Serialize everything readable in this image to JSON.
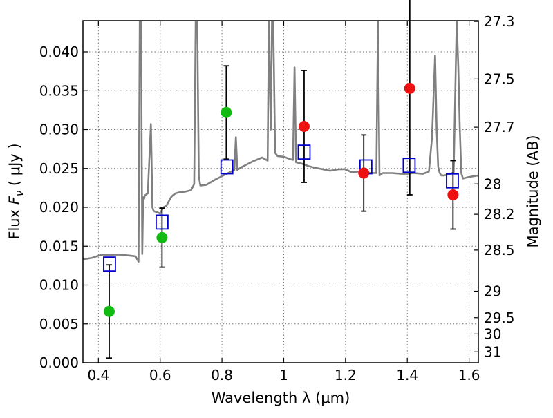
{
  "chart_data": {
    "type": "line",
    "xlabel": "Wavelength  λ (μm)",
    "ylabel": {
      "prefix": "Flux  ",
      "symbol": "F",
      "subscript": "ν",
      "unit": "  ( μJy )"
    },
    "y2label": "Magnitude (AB)",
    "xlim": [
      0.35,
      1.63
    ],
    "ylim": [
      0.0,
      0.044
    ],
    "x_ticks": [
      0.4,
      0.6,
      0.8,
      1.0,
      1.2,
      1.4,
      1.6
    ],
    "x_tick_labels": [
      "0.4",
      "0.6",
      "0.8",
      "1",
      "1.2",
      "1.4",
      "1.6"
    ],
    "y_ticks": [
      0.0,
      0.005,
      0.01,
      0.015,
      0.02,
      0.025,
      0.03,
      0.035,
      0.04
    ],
    "y_tick_labels": [
      "0.000",
      "0.005",
      "0.010",
      "0.015",
      "0.020",
      "0.025",
      "0.030",
      "0.035",
      "0.040"
    ],
    "y2_ticks": [
      {
        "label": "27.3",
        "flux": 0.0439
      },
      {
        "label": "27.5",
        "flux": 0.0365
      },
      {
        "label": "27.7",
        "flux": 0.0303
      },
      {
        "label": "28",
        "flux": 0.023
      },
      {
        "label": "28.2",
        "flux": 0.0191
      },
      {
        "label": "28.5",
        "flux": 0.0145
      },
      {
        "label": "29",
        "flux": 0.0092
      },
      {
        "label": "29.5",
        "flux": 0.0058
      },
      {
        "label": "30",
        "flux": 0.0037
      },
      {
        "label": "31",
        "flux": 0.0014
      }
    ],
    "grid": true,
    "colors": {
      "sed": "#808080",
      "model": "#0000cc",
      "green": "#11bb11",
      "red": "#ee1111",
      "errorbar": "#000000"
    },
    "sed": {
      "name": "",
      "x": [
        0.35,
        0.38,
        0.41,
        0.44,
        0.47,
        0.5,
        0.52,
        0.53,
        0.534,
        0.538,
        0.542,
        0.545,
        0.548,
        0.55,
        0.56,
        0.57,
        0.575,
        0.578,
        0.58,
        0.6,
        0.61,
        0.62,
        0.635,
        0.64,
        0.65,
        0.66,
        0.68,
        0.7,
        0.71,
        0.715,
        0.72,
        0.725,
        0.73,
        0.75,
        0.78,
        0.8,
        0.82,
        0.84,
        0.845,
        0.85,
        0.86,
        0.88,
        0.9,
        0.93,
        0.948,
        0.952,
        0.958,
        0.962,
        0.966,
        0.972,
        0.98,
        1.0,
        1.02,
        1.03,
        1.035,
        1.04,
        1.06,
        1.08,
        1.1,
        1.15,
        1.18,
        1.2,
        1.22,
        1.24,
        1.26,
        1.28,
        1.3,
        1.305,
        1.31,
        1.32,
        1.35,
        1.38,
        1.4,
        1.42,
        1.45,
        1.47,
        1.48,
        1.49,
        1.495,
        1.5,
        1.505,
        1.51,
        1.52,
        1.54,
        1.55,
        1.56,
        1.565,
        1.57,
        1.575,
        1.58,
        1.6,
        1.63
      ],
      "y": [
        0.0133,
        0.0135,
        0.0139,
        0.0139,
        0.0139,
        0.0138,
        0.0137,
        0.013,
        0.044,
        0.044,
        0.014,
        0.0213,
        0.0211,
        0.0215,
        0.0218,
        0.0307,
        0.02,
        0.0196,
        0.0195,
        0.0192,
        0.02,
        0.0202,
        0.0213,
        0.0215,
        0.0218,
        0.0219,
        0.022,
        0.0222,
        0.023,
        0.044,
        0.044,
        0.024,
        0.0228,
        0.0229,
        0.0236,
        0.024,
        0.0244,
        0.0248,
        0.029,
        0.0248,
        0.0251,
        0.0255,
        0.0259,
        0.0264,
        0.026,
        0.044,
        0.03,
        0.044,
        0.044,
        0.027,
        0.0266,
        0.0265,
        0.0262,
        0.0261,
        0.038,
        0.0258,
        0.0256,
        0.0253,
        0.0251,
        0.0247,
        0.0249,
        0.0249,
        0.0245,
        0.0246,
        0.0247,
        0.0244,
        0.0244,
        0.044,
        0.0241,
        0.0244,
        0.0244,
        0.0243,
        0.0243,
        0.0244,
        0.0243,
        0.0246,
        0.029,
        0.0395,
        0.03,
        0.0252,
        0.0244,
        0.0241,
        0.0241,
        0.0243,
        0.0245,
        0.044,
        0.038,
        0.03,
        0.0244,
        0.0237,
        0.0239,
        0.0241
      ]
    },
    "series": [
      {
        "type": "square",
        "x": [
          0.436,
          0.606,
          0.816,
          1.066,
          1.266,
          1.406,
          1.546
        ],
        "y": [
          0.0127,
          0.0181,
          0.0252,
          0.0271,
          0.0252,
          0.0254,
          0.0234
        ]
      },
      {
        "type": "green-circle",
        "x": [
          0.435,
          0.606,
          0.814
        ],
        "y": [
          0.0066,
          0.0161,
          0.0322
        ],
        "yerr_low": [
          0.006,
          0.0038,
          0.006
        ],
        "yerr_high": [
          0.006,
          0.0038,
          0.006
        ]
      },
      {
        "type": "red-circle",
        "x": [
          1.066,
          1.259,
          1.408,
          1.548
        ],
        "y": [
          0.0304,
          0.0244,
          0.0353,
          0.0216
        ],
        "yerr_low": [
          0.0072,
          0.0049,
          0.0137,
          0.0044
        ],
        "yerr_high": [
          0.0072,
          0.0049,
          0.0137,
          0.0044
        ]
      }
    ]
  }
}
